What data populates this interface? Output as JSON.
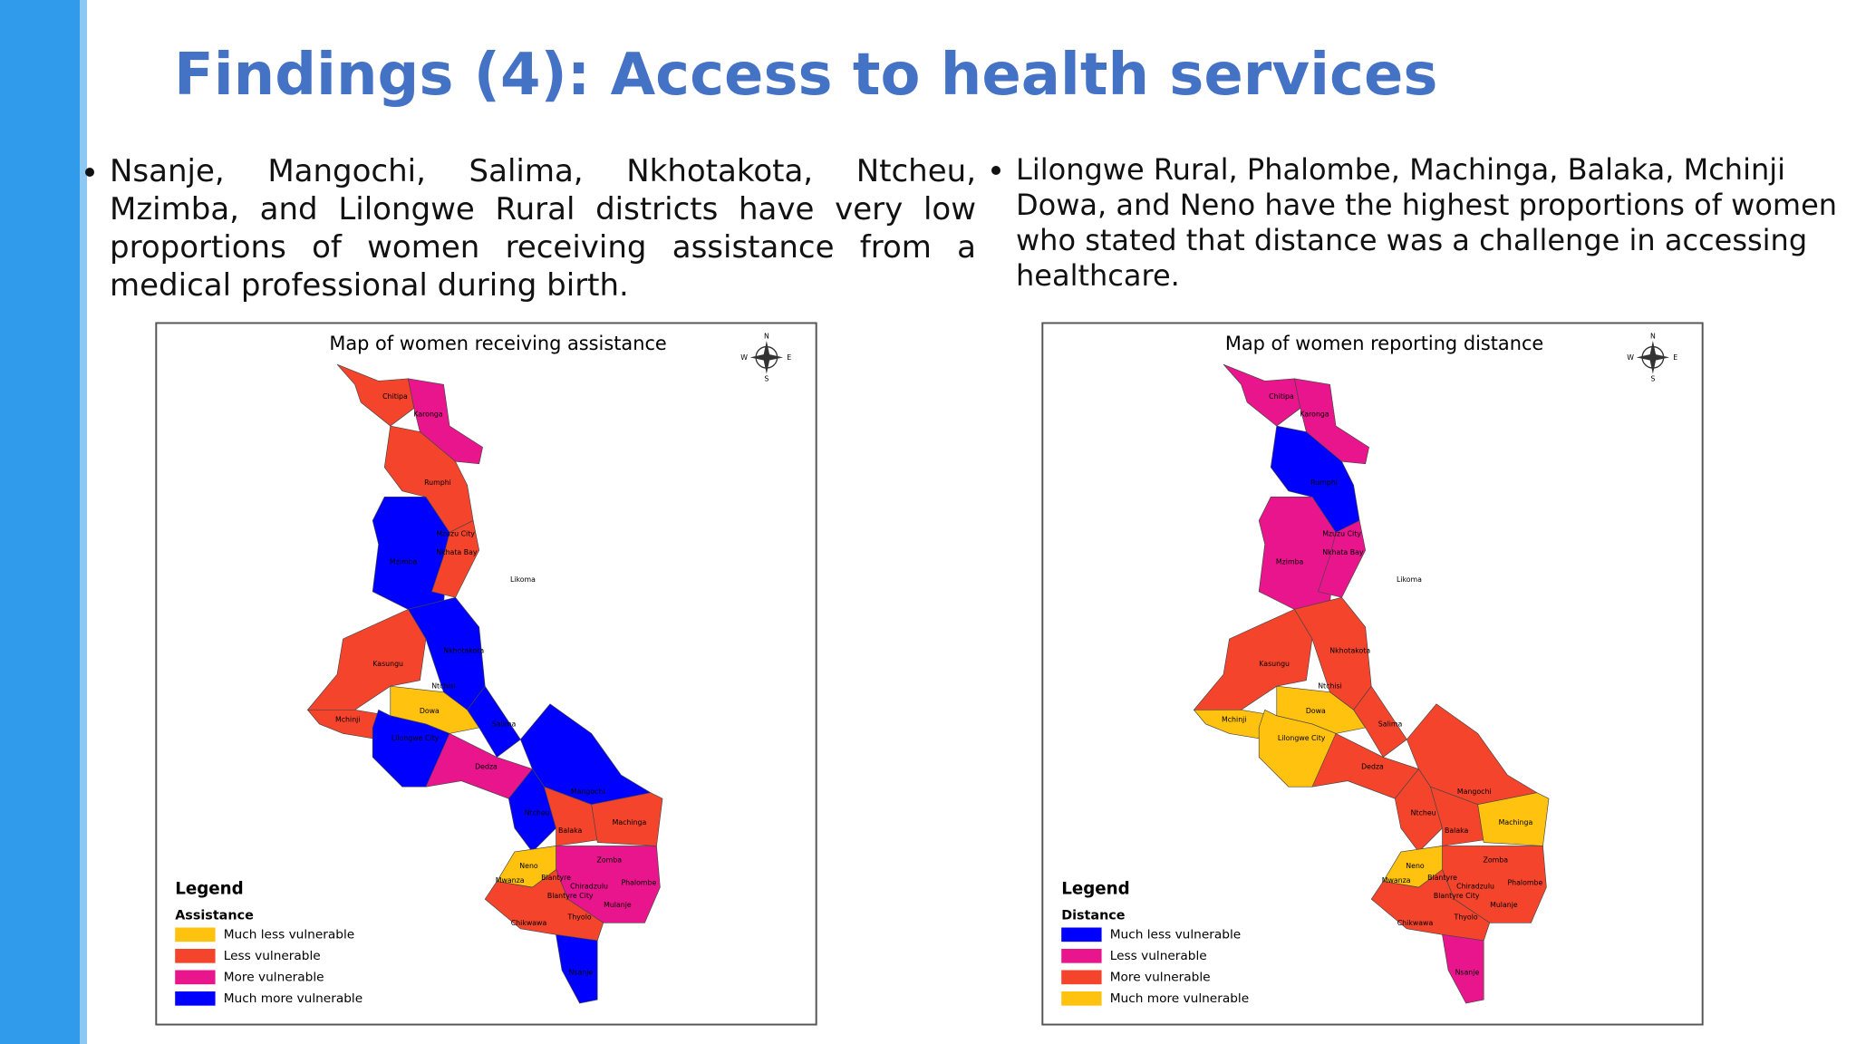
{
  "header": {
    "title": "Findings (4): Access to health services"
  },
  "bullets": [
    "Nsanje, Mangochi, Salima, Nkhotakota, Ntcheu, Mzimba, and Lilongwe Rural districts have very low proportions of women receiving assistance from a medical professional during birth.",
    "Lilongwe Rural, Phalombe, Machinga, Balaka, Mchinji Dowa, and Neno have the highest proportions of women who stated that distance was a challenge in accessing healthcare."
  ],
  "maps": [
    {
      "title": "Map of women receiving assistance",
      "legend_title": "Legend",
      "legend_subtitle": "Assistance",
      "legend": [
        {
          "label": "Much less vulnerable",
          "color": "#FFC20E"
        },
        {
          "label": "Less vulnerable",
          "color": "#F4442C"
        },
        {
          "label": "More vulnerable",
          "color": "#E8158C"
        },
        {
          "label": "Much more vulnerable",
          "color": "#0000FF"
        }
      ],
      "compass": [
        "N",
        "E",
        "S",
        "W"
      ],
      "districts": [
        "Chitipa",
        "Karonga",
        "Rumphi",
        "Mzimba",
        "Mzuzu City",
        "Nkhata Bay",
        "Likoma",
        "Kasungu",
        "Nkhotakota",
        "Ntchisi",
        "Dowa",
        "Mchinji",
        "Lilongwe City",
        "Salima",
        "Dedza",
        "Mangochi",
        "Ntcheu",
        "Balaka",
        "Machinga",
        "Zomba",
        "Neno",
        "Mwanza",
        "Blantyre",
        "Chiradzulu",
        "Blantyre City",
        "Phalombe",
        "Mulanje",
        "Thyolo",
        "Chikwawa",
        "Nsanje"
      ]
    },
    {
      "title": "Map of women reporting distance",
      "legend_title": "Legend",
      "legend_subtitle": "Distance",
      "legend": [
        {
          "label": "Much less vulnerable",
          "color": "#0000FF"
        },
        {
          "label": "Less vulnerable",
          "color": "#E8158C"
        },
        {
          "label": "More vulnerable",
          "color": "#F4442C"
        },
        {
          "label": "Much more vulnerable",
          "color": "#FFC20E"
        }
      ],
      "compass": [
        "N",
        "E",
        "S",
        "W"
      ],
      "districts": [
        "Chitipa",
        "Karonga",
        "Rumphi",
        "Mzimba",
        "Mzuzu City",
        "Nkhata Bay",
        "Likoma",
        "Kasungu",
        "Nkhotakota",
        "Ntchisi",
        "Dowa",
        "Mchinji",
        "Lilongwe City",
        "Salima",
        "Dedza",
        "Mangochi",
        "Ntcheu",
        "Balaka",
        "Machinga",
        "Zomba",
        "Neno",
        "Mwanza",
        "Blantyre",
        "Chiradzulu",
        "Blantyre City",
        "Phalombe",
        "Mulanje",
        "Thyolo",
        "Chikwawa",
        "Nsanje"
      ]
    }
  ]
}
